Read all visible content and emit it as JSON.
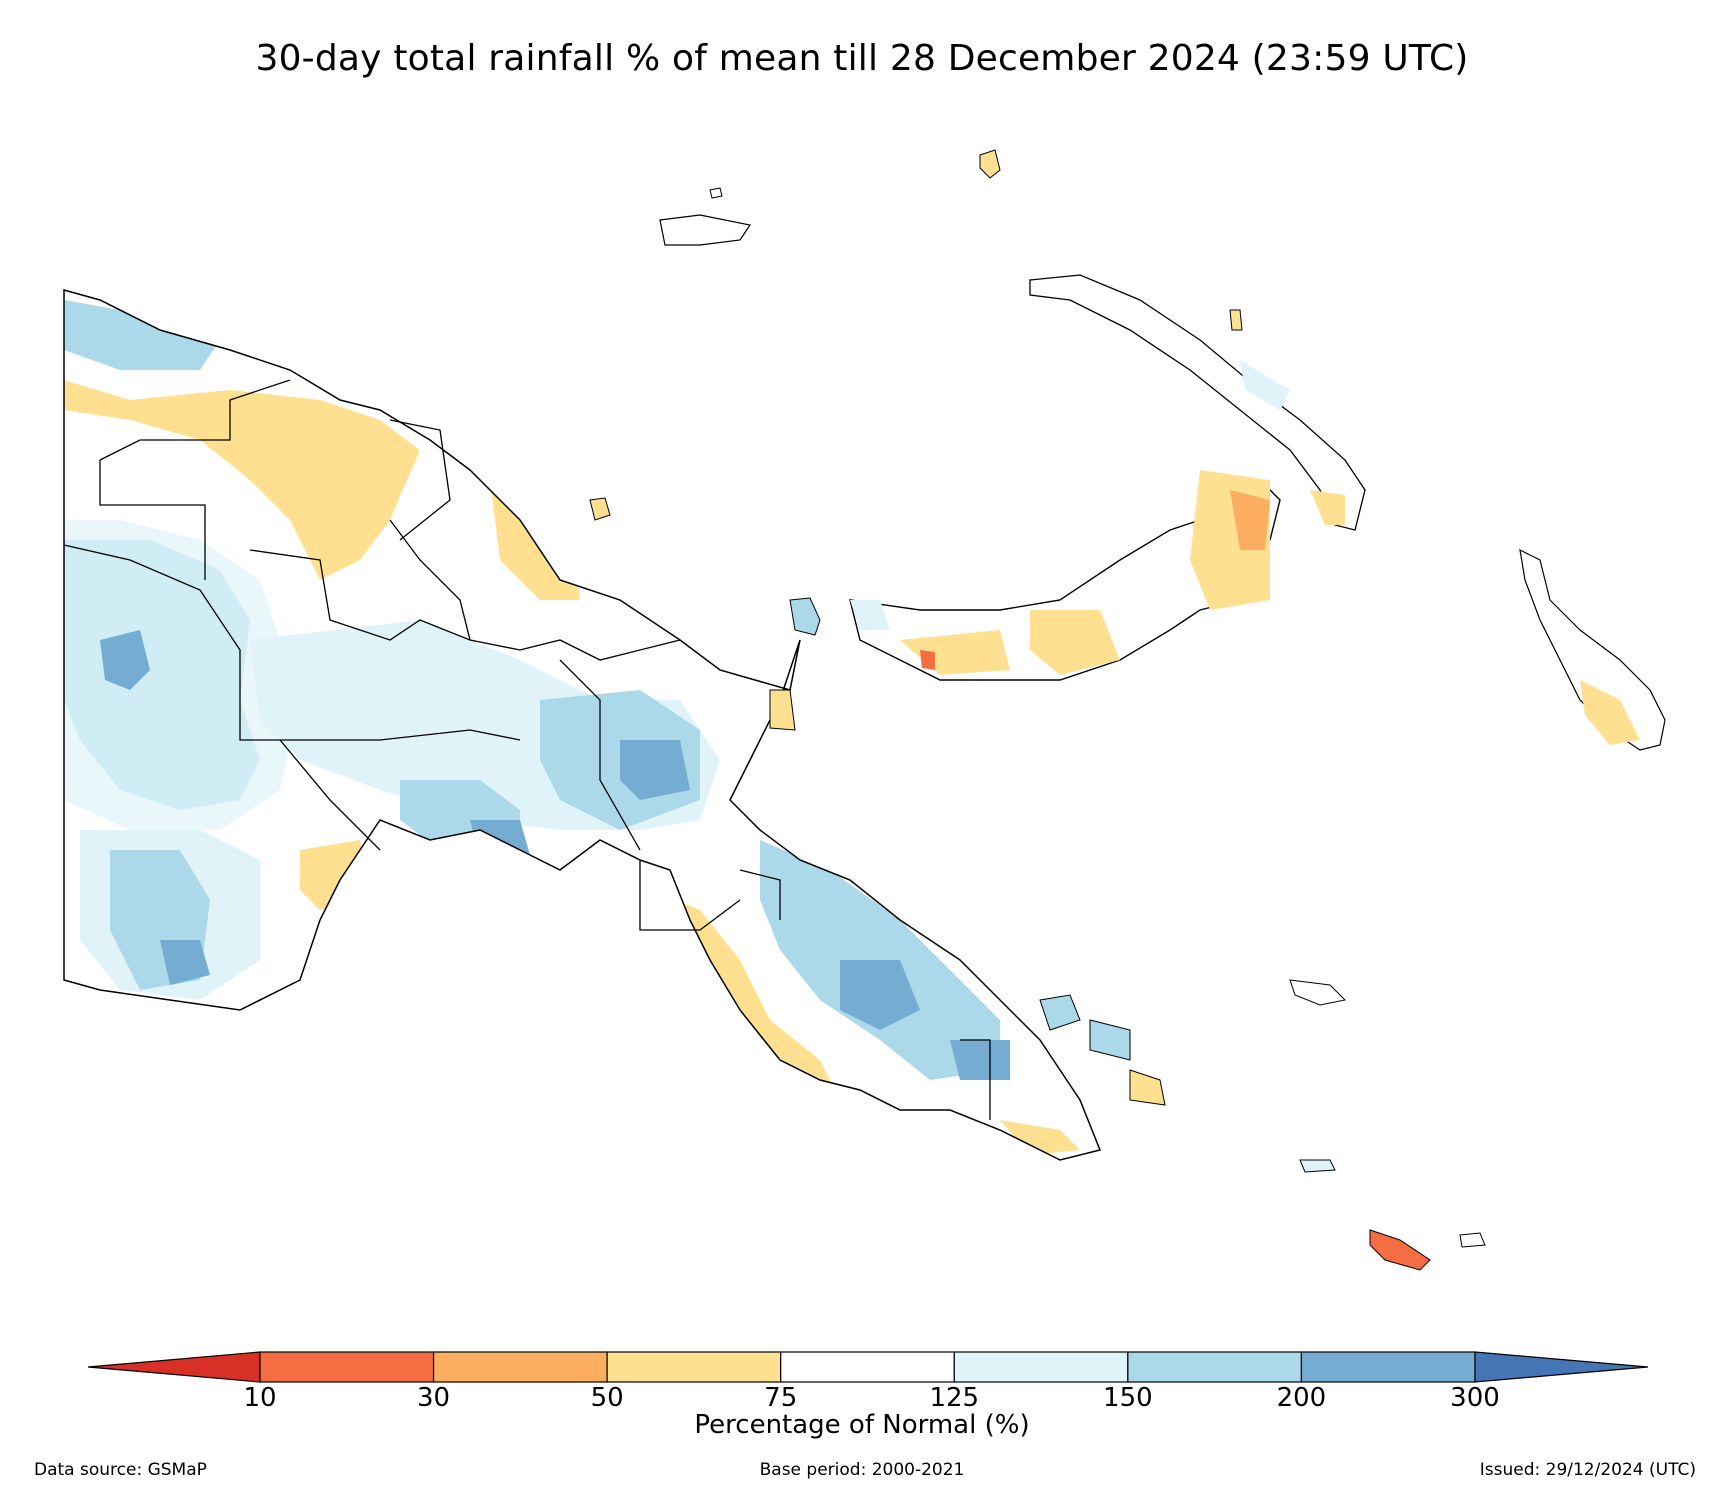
{
  "title": "30-day total rainfall % of mean till 28 December 2024 (23:59 UTC)",
  "colorbar": {
    "label": "Percentage of Normal (%)",
    "ticks": [
      "10",
      "30",
      "50",
      "75",
      "125",
      "150",
      "200",
      "300"
    ],
    "colors": {
      "below_10": "#d73027",
      "10_30": "#f46d43",
      "30_50": "#fdae61",
      "50_75": "#fee090",
      "75_125": "#ffffff",
      "125_150": "#e0f3f8",
      "150_200": "#abd9e9",
      "200_300": "#74add1",
      "above_300": "#4575b4"
    }
  },
  "footer": {
    "data_source": "Data source: GSMaP",
    "base_period": "Base period: 2000-2021",
    "issued": "Issued: 29/12/2024 (UTC)"
  }
}
